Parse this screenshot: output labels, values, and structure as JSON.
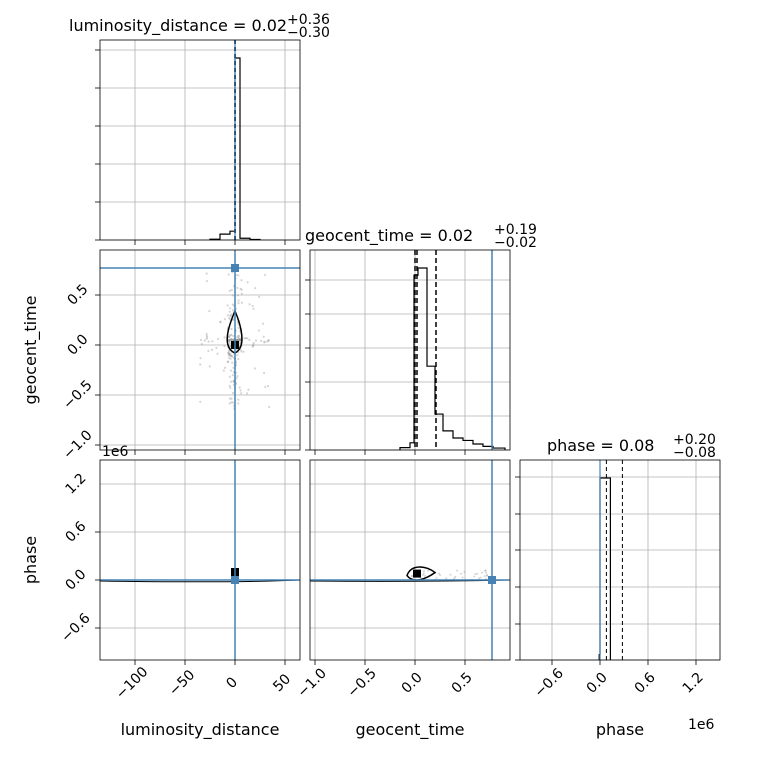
{
  "chart_data": {
    "type": "corner",
    "parameters": [
      "luminosity_distance",
      "geocent_time",
      "phase"
    ],
    "truths": {
      "luminosity_distance": 0.0,
      "geocent_time": 0.77,
      "phase": 0.0
    },
    "truth_color": "#4682b4",
    "hist_color": "#000000",
    "grid": true,
    "titles": {
      "luminosity_distance": {
        "label": "luminosity_distance = 0.02",
        "plus": "+0.36",
        "minus": "−0.30"
      },
      "geocent_time": {
        "label": "geocent_time = 0.02",
        "plus": "+0.19",
        "minus": "−0.02"
      },
      "phase": {
        "label": "phase = 0.08",
        "plus": "+0.20",
        "minus": "−0.08"
      }
    },
    "quantiles": {
      "luminosity_distance": [
        -0.28,
        0.02,
        0.38
      ],
      "geocent_time": [
        0.0,
        0.02,
        0.21
      ],
      "phase": [
        0.0,
        0.08,
        0.28
      ]
    },
    "axes": {
      "luminosity_distance": {
        "xlabel": "luminosity_distance",
        "range": [
          -135,
          65
        ],
        "ticks": [
          -100,
          -50,
          0,
          50
        ],
        "tick_labels": [
          "−100",
          "−50",
          "0",
          "50"
        ]
      },
      "geocent_time": {
        "xlabel": "geocent_time",
        "ylabel": "geocent_time",
        "range": [
          -1.05,
          0.95
        ],
        "ticks": [
          -1.0,
          -0.5,
          0.0,
          0.5
        ],
        "xtick_labels": [
          "−1.0",
          "−0.5",
          "0.0",
          "0.5"
        ],
        "ytick_labels": [
          "−1.0",
          "−0.5",
          "0.0",
          "0.5"
        ]
      },
      "phase": {
        "xlabel": "phase",
        "ylabel": "phase",
        "range": [
          -1.0,
          1.5
        ],
        "ticks": [
          -0.6,
          0.0,
          0.6,
          1.2
        ],
        "tick_labels": [
          "−0.6",
          "0.0",
          "0.6",
          "1.2"
        ],
        "offset_text": "1e6"
      }
    },
    "hist_luminosity_distance": {
      "bin_edges": [
        -25,
        -15,
        -5,
        0,
        5,
        15,
        25
      ],
      "counts": [
        0.004,
        0.03,
        0.045,
        0.93,
        0.009,
        0.003
      ]
    },
    "hist_geocent_time": {
      "bin_edges": [
        -0.15,
        -0.05,
        -0.01,
        0.03,
        0.12,
        0.2,
        0.28,
        0.38,
        0.48,
        0.58,
        0.68,
        0.78,
        0.9
      ],
      "counts": [
        0.01,
        0.03,
        0.73,
        0.76,
        0.35,
        0.15,
        0.08,
        0.05,
        0.04,
        0.025,
        0.015,
        0.008
      ]
    },
    "hist_phase": {
      "bin_edges": [
        -0.01,
        0.0,
        0.13
      ],
      "counts": [
        0.03,
        1.0
      ]
    }
  }
}
